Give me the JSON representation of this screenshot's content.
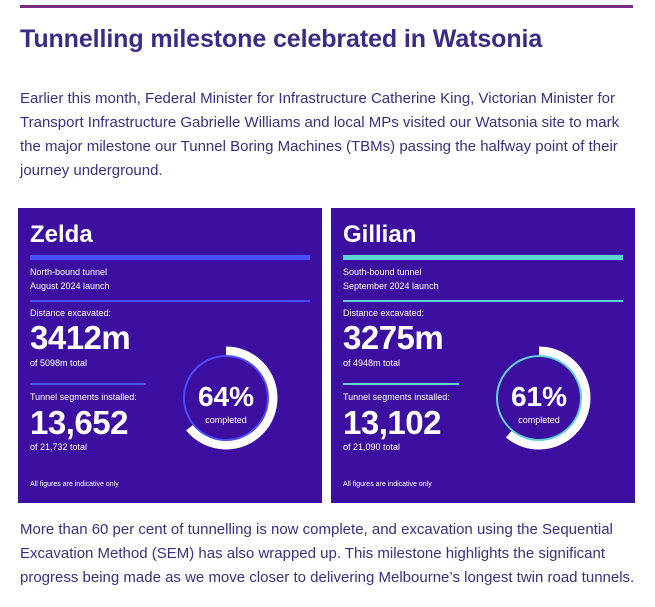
{
  "article": {
    "title": "Tunnelling milestone celebrated in Watsonia",
    "intro": "Earlier this month, Federal Minister for Infrastructure Catherine King, Victorian Minister for Transport Infrastructure Gabrielle Williams and local MPs visited our Watsonia site to mark the major milestone our Tunnel Boring Machines (TBMs) passing the halfway point of their journey underground.",
    "outro": "More than 60 per cent of tunnelling is now complete, and excavation using the Sequential Excavation Method (SEM) has also wrapped up. This milestone highlights the significant progress being made as we move closer to delivering Melbourne’s longest twin road tunnels."
  },
  "colors": {
    "rule": "#7a2b7e",
    "title": "#3c2a85",
    "card_bg": "#3d0fa0",
    "zelda_accent": "#4b4cff",
    "gillian_accent": "#5fd2d2"
  },
  "cards": [
    {
      "name": "Zelda",
      "tunnel": "North-bound tunnel",
      "launch": "August 2024 launch",
      "distance_label": "Distance excavated:",
      "distance_value": "3412m",
      "distance_total": "of 5098m total",
      "segments_label": "Tunnel segments installed:",
      "segments_value": "13,652",
      "segments_total": "of 21,732 total",
      "percent": "64%",
      "percent_value": 64,
      "percent_label": "completed",
      "note": "All figures are indicative only"
    },
    {
      "name": "Gillian",
      "tunnel": "South-bound tunnel",
      "launch": "September 2024 launch",
      "distance_label": "Distance excavated:",
      "distance_value": "3275m",
      "distance_total": "of 4948m total",
      "segments_label": "Tunnel segments installed:",
      "segments_value": "13,102",
      "segments_total": "of 21,090 total",
      "percent": "61%",
      "percent_value": 61,
      "percent_label": "completed",
      "note": "All figures are indicative only"
    }
  ]
}
